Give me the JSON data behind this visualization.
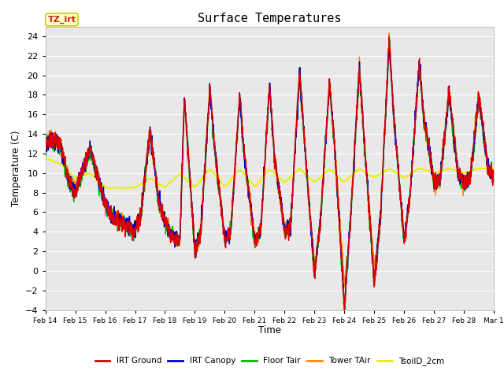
{
  "title": "Surface Temperatures",
  "ylabel": "Temperature (C)",
  "xlabel": "Time",
  "ylim": [
    -4,
    25
  ],
  "annotation": "TZ_irt",
  "annotation_color": "#cc2200",
  "annotation_bg": "#ffffcc",
  "annotation_border": "#cccc00",
  "background_color": "#e8e8e8",
  "fig_bg": "#ffffff",
  "grid_color": "#ffffff",
  "series": {
    "IRT Ground": {
      "color": "#dd0000",
      "lw": 1.0
    },
    "IRT Canopy": {
      "color": "#0000cc",
      "lw": 1.0
    },
    "Floor Tair": {
      "color": "#00bb00",
      "lw": 1.0
    },
    "Tower TAir": {
      "color": "#ff8800",
      "lw": 1.0
    },
    "TsoilD_2cm": {
      "color": "#eeee00",
      "lw": 1.5
    }
  },
  "xtick_labels": [
    "Feb 14",
    "Feb 15",
    "Feb 16",
    "Feb 17",
    "Feb 18",
    "Feb 19",
    "Feb 20",
    "Feb 21",
    "Feb 22",
    "Feb 23",
    "Feb 24",
    "Feb 25",
    "Feb 26",
    "Feb 27",
    "Feb 28",
    "Mar 1"
  ],
  "ytick_vals": [
    -4,
    -2,
    0,
    2,
    4,
    6,
    8,
    10,
    12,
    14,
    16,
    18,
    20,
    22,
    24
  ]
}
